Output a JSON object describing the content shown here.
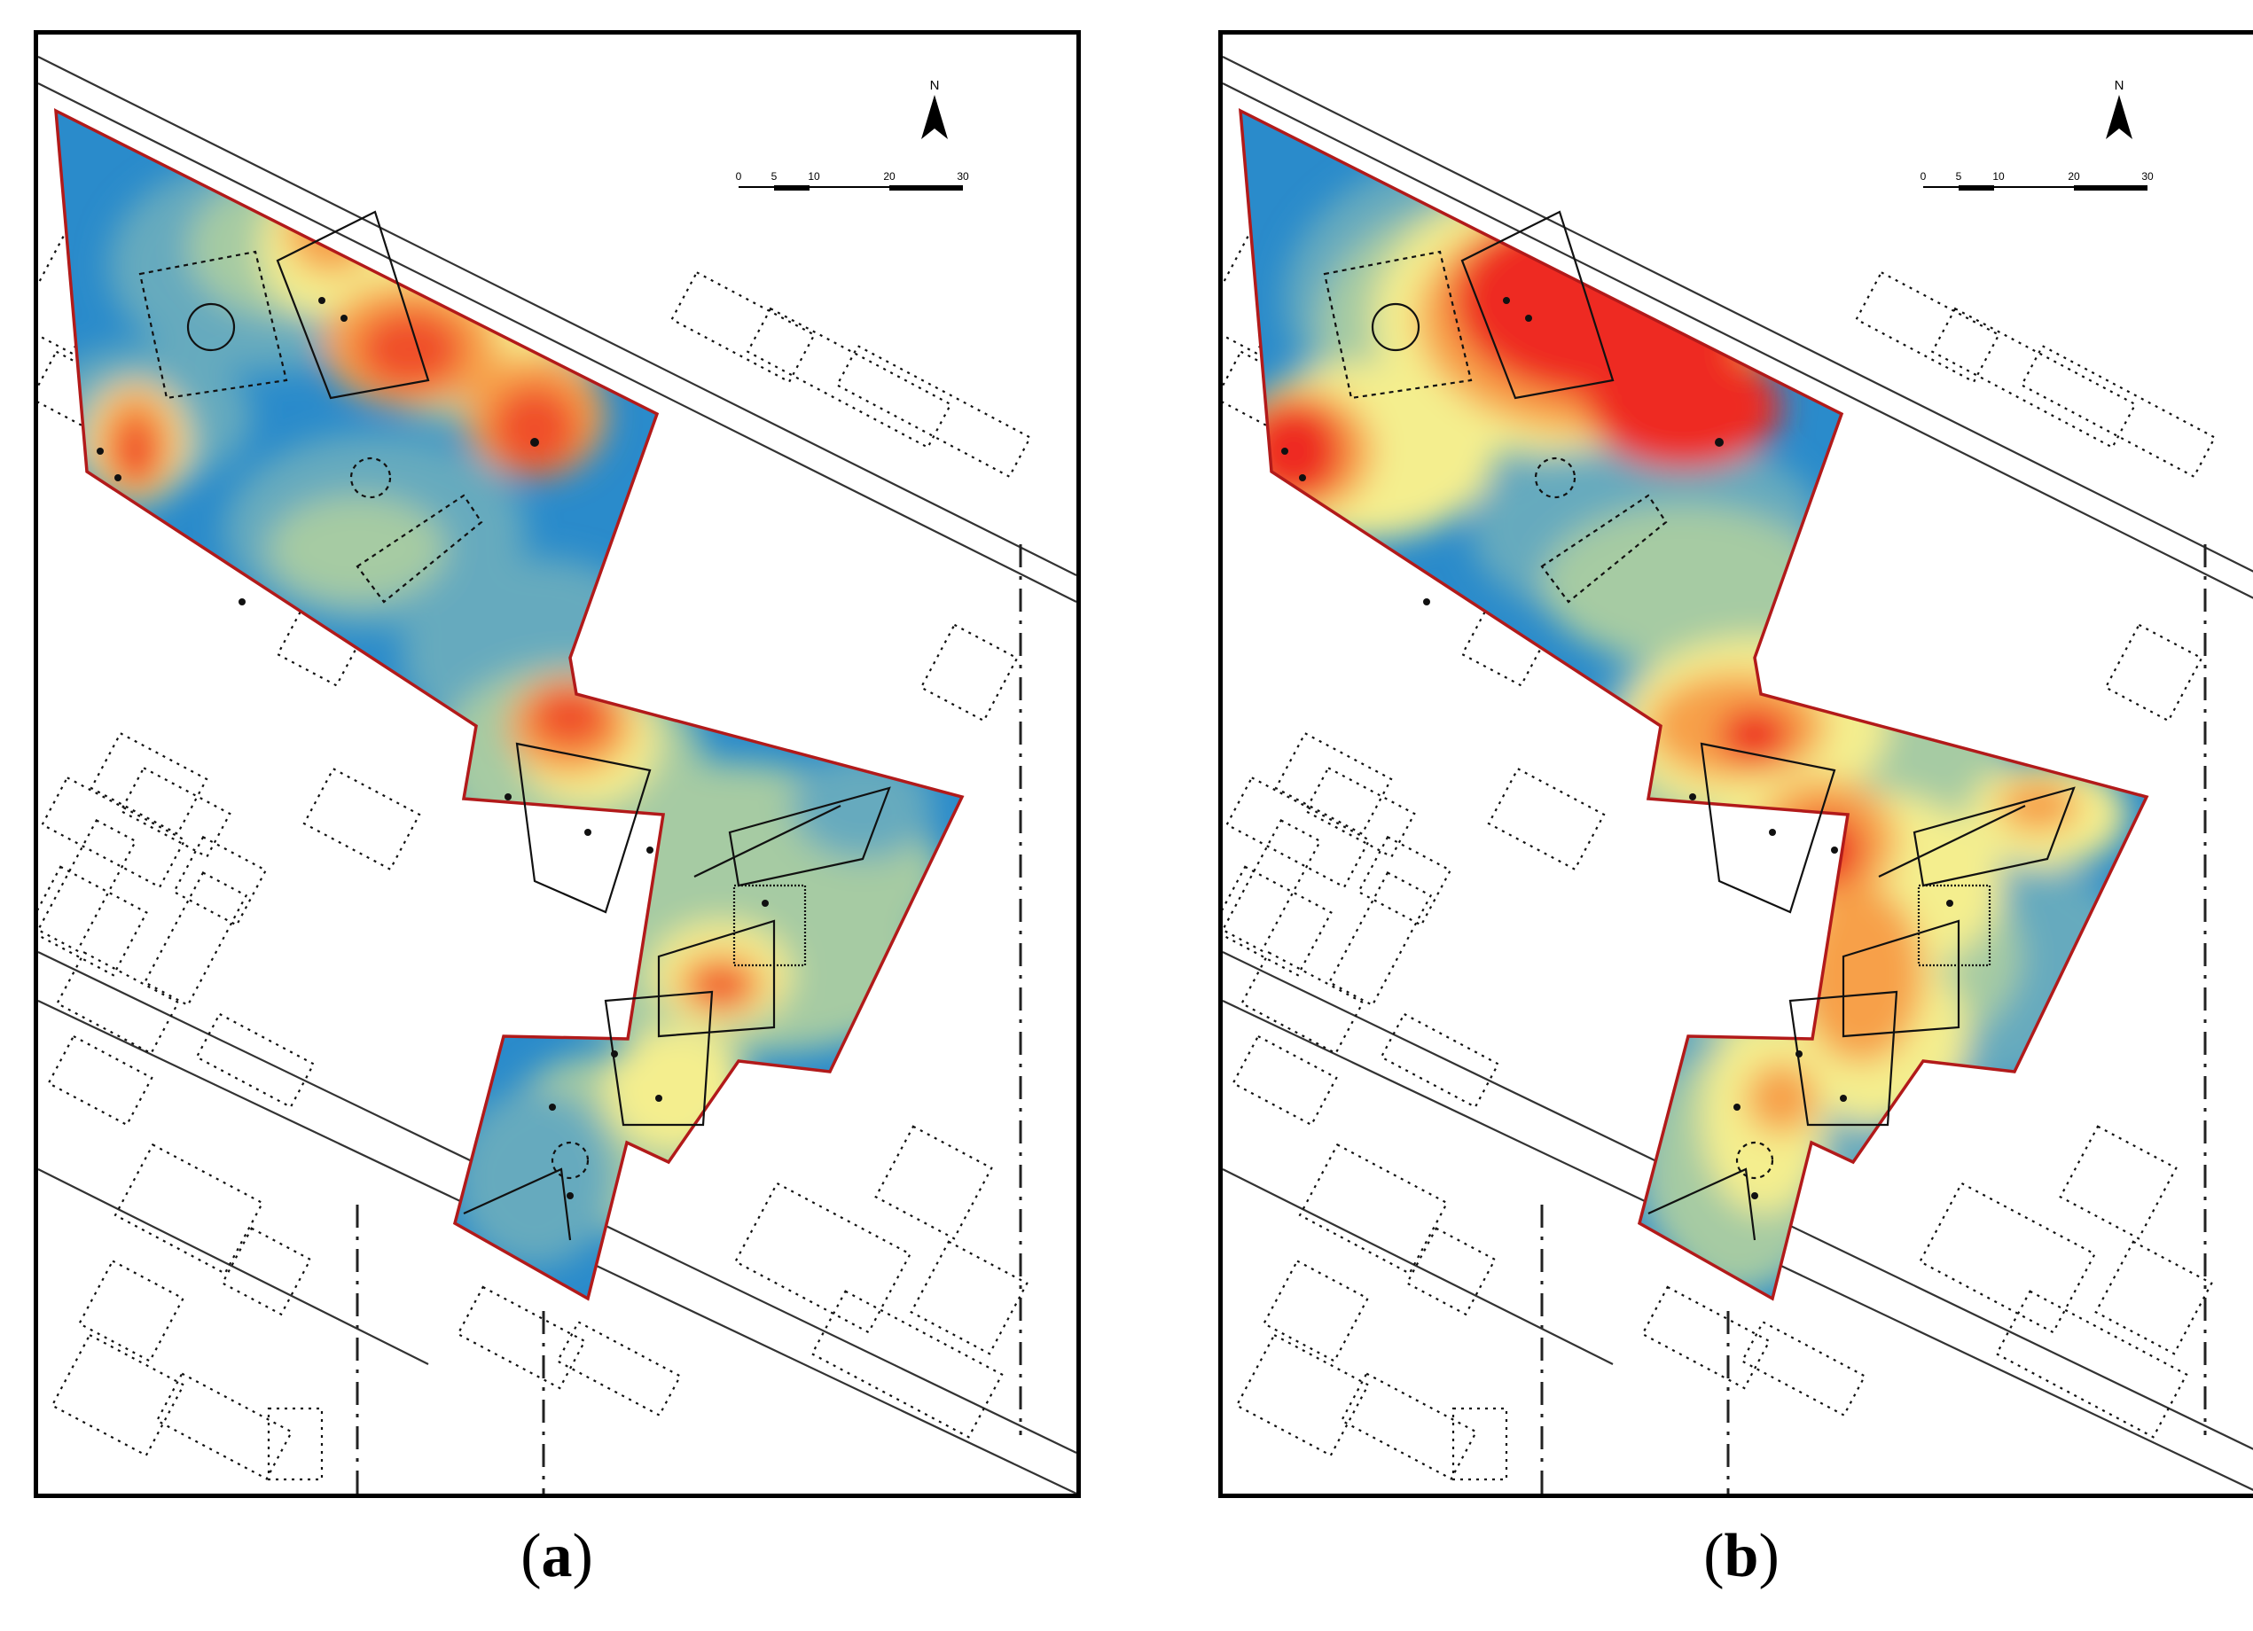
{
  "panels": [
    {
      "id": "a",
      "caption_open": "(",
      "caption_letter": "a",
      "caption_close": ")",
      "north_label": "N",
      "scale_labels": [
        "0",
        "5",
        "10",
        "20",
        "30"
      ],
      "intensity_level": "low",
      "colors": {
        "low": "#2a8bcb",
        "mid_low": "#66aabe",
        "mid": "#a6cba3",
        "mid_high": "#f4ee8e",
        "high": "#f7a04a",
        "peak": "#f0502a"
      }
    },
    {
      "id": "b",
      "caption_open": "(",
      "caption_letter": "b",
      "caption_close": ")",
      "north_label": "N",
      "scale_labels": [
        "0",
        "5",
        "10",
        "20",
        "30"
      ],
      "intensity_level": "high",
      "colors": {
        "low": "#2a8bcb",
        "mid_low": "#66aabe",
        "mid": "#a6cba3",
        "mid_high": "#f4ee8e",
        "high": "#f7a04a",
        "peak": "#ee2a22"
      }
    }
  ],
  "boundary_color": "#b21a1a"
}
